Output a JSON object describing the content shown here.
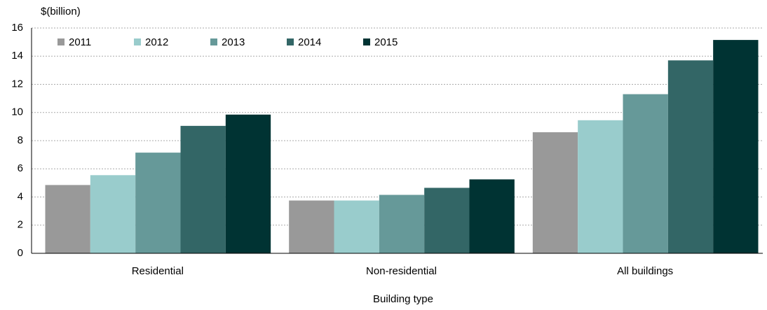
{
  "chart_data": {
    "type": "bar",
    "y_axis_label": "$(billion)",
    "x_axis_label": "Building type",
    "categories": [
      "Residential",
      "Non-residential",
      "All buildings"
    ],
    "series": [
      {
        "name": "2011",
        "color": "#999999",
        "values": [
          4.85,
          3.75,
          8.6
        ]
      },
      {
        "name": "2012",
        "color": "#99cccc",
        "values": [
          5.55,
          3.75,
          9.45
        ]
      },
      {
        "name": "2013",
        "color": "#669999",
        "values": [
          7.15,
          4.15,
          11.3
        ]
      },
      {
        "name": "2014",
        "color": "#336666",
        "values": [
          9.05,
          4.65,
          13.7
        ]
      },
      {
        "name": "2015",
        "color": "#003333",
        "values": [
          9.85,
          5.25,
          15.15
        ]
      }
    ],
    "ylim": [
      0,
      16
    ],
    "yticks": [
      0,
      2,
      4,
      6,
      8,
      10,
      12,
      14,
      16
    ],
    "grid": true,
    "legend": "top-left"
  }
}
